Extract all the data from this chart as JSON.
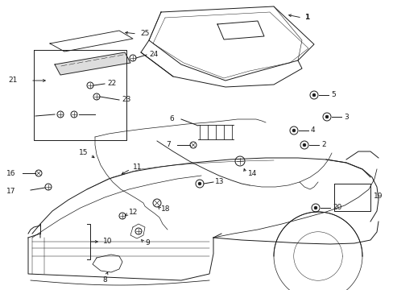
{
  "bg": "#ffffff",
  "fg": "#1a1a1a",
  "fig_w": 4.89,
  "fig_h": 3.6,
  "dpi": 100,
  "lw": 0.7,
  "fs": 6.5
}
